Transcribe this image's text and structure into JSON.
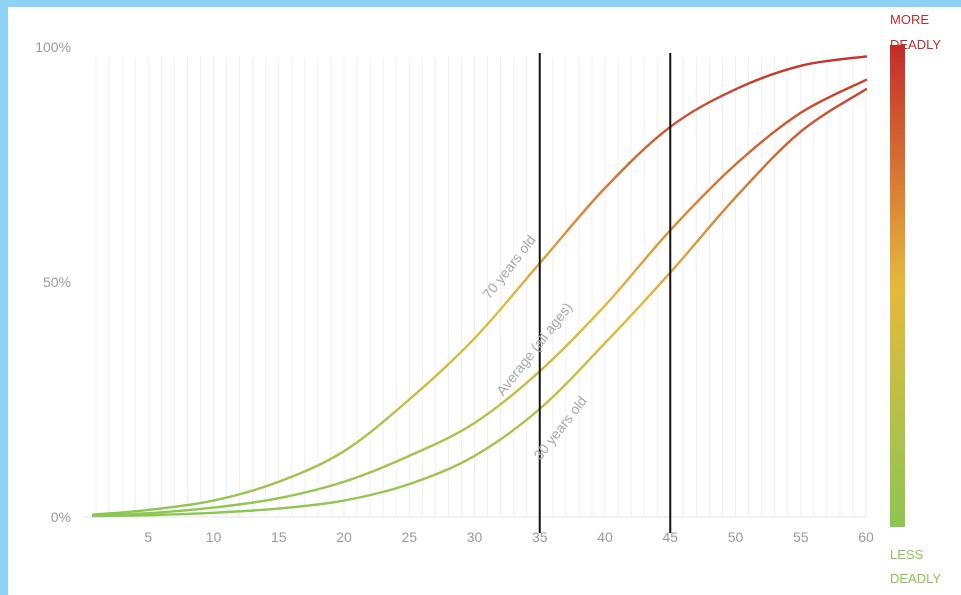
{
  "chart_data": {
    "type": "line",
    "title": "",
    "xlabel": "",
    "ylabel": "",
    "xlim": [
      0,
      60
    ],
    "ylim": [
      0,
      100
    ],
    "x_ticks": [
      5,
      10,
      15,
      20,
      25,
      30,
      35,
      40,
      45,
      50,
      55,
      60
    ],
    "y_ticks": [
      {
        "value": 0,
        "label": "0%"
      },
      {
        "value": 50,
        "label": "50%"
      },
      {
        "value": 100,
        "label": "100%"
      }
    ],
    "grid": "vertical",
    "vertical_markers": [
      35,
      45
    ],
    "series": [
      {
        "name": "70 years old",
        "x": [
          0,
          5,
          10,
          15,
          20,
          25,
          30,
          35,
          40,
          45,
          50,
          55,
          60
        ],
        "values": [
          0.5,
          1.5,
          3.5,
          7.5,
          14,
          25,
          38,
          54,
          70,
          83,
          91,
          96,
          98
        ]
      },
      {
        "name": "Average (all ages)",
        "x": [
          0,
          5,
          10,
          15,
          20,
          25,
          30,
          35,
          40,
          45,
          50,
          55,
          60
        ],
        "values": [
          0.3,
          0.8,
          2,
          4,
          7.5,
          13,
          20,
          31,
          45,
          61,
          75,
          86,
          93
        ]
      },
      {
        "name": "30 years old",
        "x": [
          0,
          5,
          10,
          15,
          20,
          25,
          30,
          35,
          40,
          45,
          50,
          55,
          60
        ],
        "values": [
          0.2,
          0.4,
          0.9,
          1.8,
          3.5,
          7,
          13,
          23,
          37,
          52,
          68,
          82,
          91
        ]
      }
    ],
    "color_scale": {
      "top_label_line1": "MORE",
      "top_label_line2": "DEADLY",
      "bottom_label_line1": "LESS",
      "bottom_label_line2": "DEADLY",
      "top_color": "#c62a2a",
      "mid_color": "#e6b93c",
      "bottom_color": "#8cc653"
    }
  }
}
